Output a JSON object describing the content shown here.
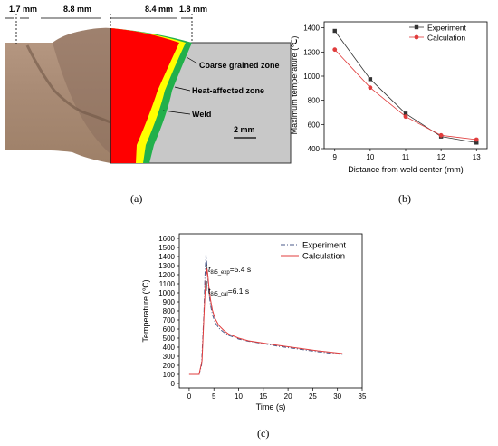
{
  "panel_a": {
    "dim_1": "1.7 mm",
    "dim_2": "8.8 mm",
    "dim_3": "8.4 mm",
    "dim_4": "1.8 mm",
    "zone_coarse": "Coarse grained zone",
    "zone_haz": "Heat-affected zone",
    "zone_weld": "Weld",
    "scale": "2 mm",
    "colors": {
      "weld": "#ff0000",
      "coarse": "#ffff00",
      "haz": "#22b04b",
      "base": "#c8c8c8"
    }
  },
  "labels": {
    "a": "(a)",
    "b": "(b)",
    "c": "(c)"
  },
  "chart_data": [
    {
      "type": "line",
      "xlabel": "Distance from weld center (mm)",
      "ylabel": "Maximum temperature (℃)",
      "xlim": [
        8.7,
        13.3
      ],
      "ylim": [
        400,
        1450
      ],
      "xticks": [
        9,
        10,
        11,
        12,
        13
      ],
      "yticks": [
        400,
        600,
        800,
        1000,
        1200,
        1400
      ],
      "legend_position": "top-right",
      "series": [
        {
          "name": "Experiment",
          "color": "#333333",
          "marker": "square",
          "x": [
            9,
            10,
            11,
            12,
            13
          ],
          "y": [
            1375,
            975,
            690,
            500,
            450
          ]
        },
        {
          "name": "Calculation",
          "color": "#e03c3c",
          "marker": "circle",
          "x": [
            9,
            10,
            11,
            12,
            13
          ],
          "y": [
            1220,
            905,
            665,
            510,
            475
          ]
        }
      ]
    },
    {
      "type": "line",
      "xlabel": "Time (s)",
      "ylabel": "Temperature (℃)",
      "xlim": [
        -2,
        35
      ],
      "ylim": [
        -50,
        1650
      ],
      "xticks": [
        0,
        5,
        10,
        15,
        20,
        25,
        30,
        35
      ],
      "yticks": [
        0,
        100,
        200,
        300,
        400,
        500,
        600,
        700,
        800,
        900,
        1000,
        1100,
        1200,
        1300,
        1400,
        1500,
        1600
      ],
      "legend_position": "top-right",
      "annotations": [
        {
          "t": "t",
          "sub": "8/5_exp",
          "rest": "=5.4 s"
        },
        {
          "t": "t",
          "sub": "8/5_cal",
          "rest": "=6.1 s"
        }
      ],
      "series": [
        {
          "name": "Experiment",
          "color": "#4a5a8a",
          "dash": "dashdot",
          "x": [
            0,
            2,
            2.5,
            3,
            3.2,
            3.4,
            3.6,
            3.8,
            4.0,
            4.3,
            4.7,
            5.2,
            6,
            7,
            8,
            10,
            12,
            15,
            18,
            22,
            26,
            31
          ],
          "y": [
            100,
            100,
            200,
            800,
            1200,
            1420,
            1300,
            1150,
            1000,
            870,
            760,
            680,
            610,
            565,
            530,
            490,
            465,
            440,
            410,
            380,
            350,
            320
          ]
        },
        {
          "name": "Calculation",
          "color": "#e03c3c",
          "dash": "solid",
          "x": [
            0,
            2,
            2.6,
            3.0,
            3.3,
            3.6,
            3.8,
            4.0,
            4.3,
            4.7,
            5.2,
            6,
            7,
            8,
            10,
            12,
            15,
            18,
            22,
            26,
            31
          ],
          "y": [
            100,
            100,
            250,
            750,
            1100,
            1270,
            1180,
            1060,
            930,
            810,
            720,
            640,
            585,
            545,
            500,
            470,
            445,
            420,
            390,
            360,
            330
          ]
        }
      ]
    }
  ]
}
